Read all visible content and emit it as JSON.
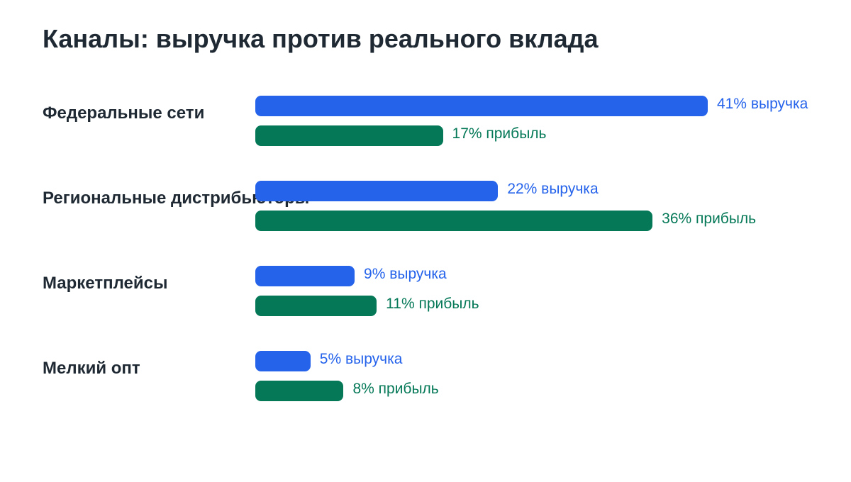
{
  "title": "Каналы: выручка против реального вклада",
  "colors": {
    "revenue": "#2563eb",
    "profit": "#047857",
    "text": "#1f2933"
  },
  "chart_data": {
    "type": "bar",
    "orientation": "horizontal",
    "title": "Каналы: выручка против реального вклада",
    "categories": [
      "Федеральные сети",
      "Региональные дистрибьюторы",
      "Маркетплейсы",
      "Мелкий опт"
    ],
    "series": [
      {
        "name": "выручка",
        "values": [
          41,
          22,
          9,
          5
        ],
        "labels": [
          "41% выручка",
          "22% выручка",
          "9% выручка",
          "5% выручка"
        ]
      },
      {
        "name": "прибыль",
        "values": [
          17,
          36,
          11,
          8
        ],
        "labels": [
          "17% прибыль",
          "36% прибыль",
          "11% прибыль",
          "8% прибыль"
        ]
      }
    ],
    "unit": "%",
    "grid": false,
    "legend": "none"
  }
}
